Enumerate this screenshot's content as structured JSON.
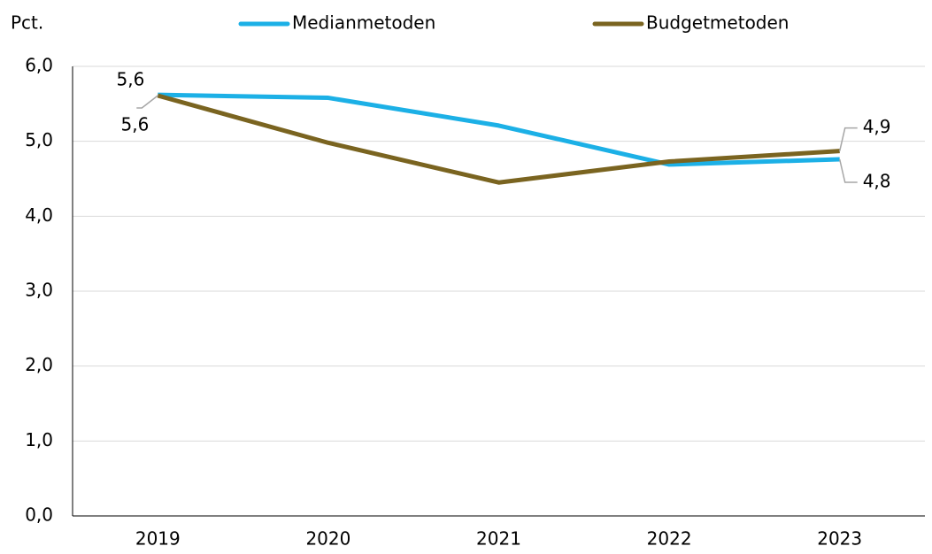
{
  "chart_data": {
    "type": "line",
    "y_label": "Pct.",
    "categories": [
      "2019",
      "2020",
      "2021",
      "2022",
      "2023"
    ],
    "series": [
      {
        "name": "Medianmetoden",
        "color": "#1cb0e6",
        "values": [
          5.62,
          5.58,
          5.21,
          4.69,
          4.76
        ],
        "value_labels": [
          "5,6",
          null,
          null,
          null,
          "4,8"
        ]
      },
      {
        "name": "Budgetmetoden",
        "color": "#7a6420",
        "values": [
          5.61,
          4.98,
          4.45,
          4.73,
          4.87
        ],
        "value_labels": [
          "5,6",
          null,
          null,
          null,
          "4,9"
        ]
      }
    ],
    "ylim": [
      0,
      6
    ],
    "yticks": [
      {
        "value": 0,
        "label": "0,0"
      },
      {
        "value": 1,
        "label": "1,0"
      },
      {
        "value": 2,
        "label": "2,0"
      },
      {
        "value": 3,
        "label": "3,0"
      },
      {
        "value": 4,
        "label": "4,0"
      },
      {
        "value": 5,
        "label": "5,0"
      },
      {
        "value": 6,
        "label": "6,0"
      }
    ],
    "grid": true
  }
}
